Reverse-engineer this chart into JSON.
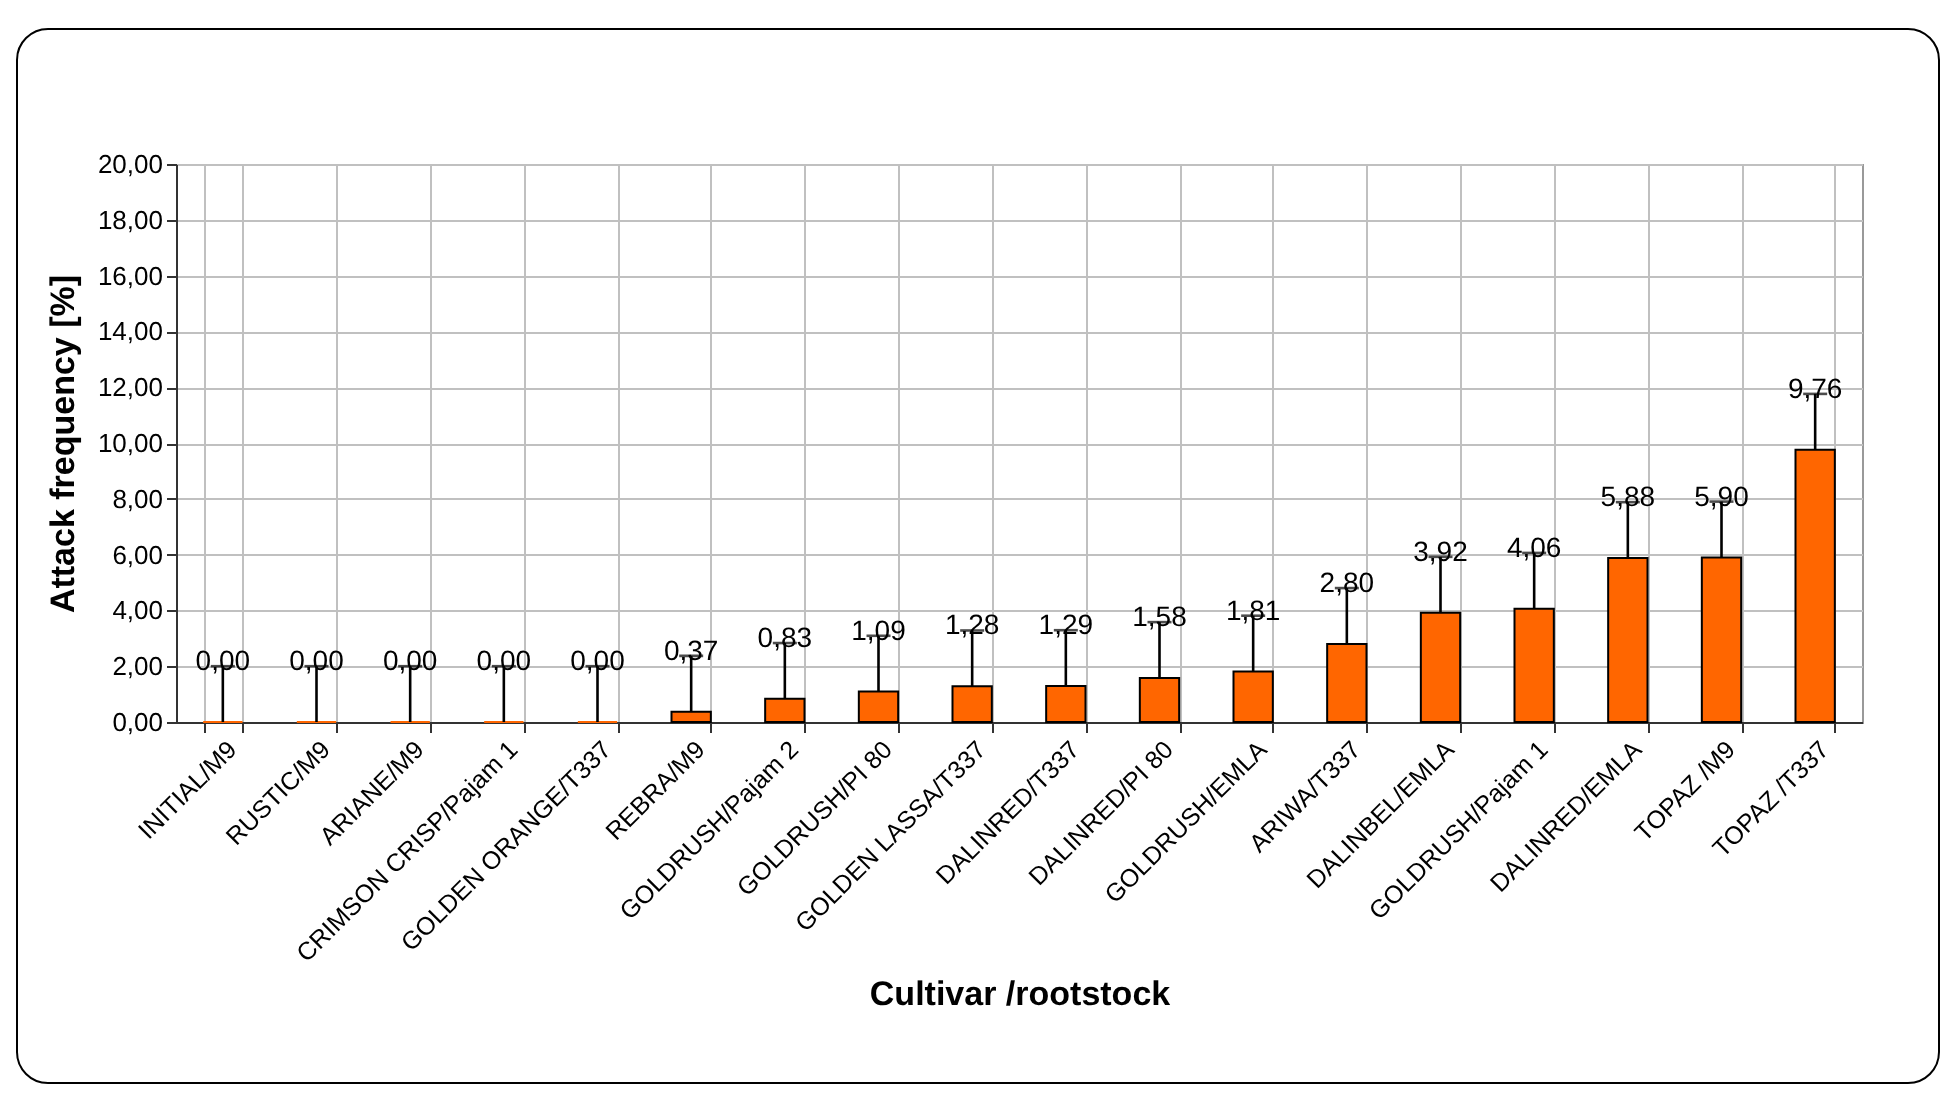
{
  "chart_data": {
    "type": "bar",
    "xlabel": "Cultivar /rootstock",
    "ylabel": "Attack frequency [%]",
    "categories": [
      "INITIAL/M9",
      "RUSTIC/M9",
      "ARIANE/M9",
      "CRIMSON CRISP/Pajam 1",
      "GOLDEN ORANGE/T337",
      "REBRA/M9",
      "GOLDRUSH/Pajam 2",
      "GOLDRUSH/PI 80",
      "GOLDEN LASSA/T337",
      "DALINRED/T337",
      "DALINRED/PI 80",
      "GOLDRUSH/EMLA",
      "ARIWA/T337",
      "DALINBEL/EMLA",
      "GOLDRUSH/Pajam 1",
      "DALINRED/EMLA",
      "TOPAZ /M9",
      "TOPAZ /T337"
    ],
    "values": [
      0,
      0,
      0,
      0,
      0,
      0.37,
      0.83,
      1.09,
      1.28,
      1.29,
      1.58,
      1.81,
      2.8,
      3.92,
      4.06,
      5.88,
      5.9,
      9.76
    ],
    "value_labels": [
      "0,00",
      "0,00",
      "0,00",
      "0,00",
      "0,00",
      "0,37",
      "0,83",
      "1,09",
      "1,28",
      "1,29",
      "1,58",
      "1,81",
      "2,80",
      "3,92",
      "4,06",
      "5,88",
      "5,90",
      "9,76"
    ],
    "errors": [
      [
        0,
        2
      ],
      [
        0,
        2
      ],
      [
        0,
        2
      ],
      [
        0,
        2
      ],
      [
        0,
        2
      ],
      [
        0.37,
        2.37
      ],
      [
        0.83,
        2.83
      ],
      [
        1.09,
        3.09
      ],
      [
        1.28,
        3.28
      ],
      [
        1.29,
        3.29
      ],
      [
        1.58,
        3.58
      ],
      [
        1.81,
        3.81
      ],
      [
        2.8,
        4.8
      ],
      [
        3.92,
        5.92
      ],
      [
        4.06,
        6.06
      ],
      [
        5.88,
        7.88
      ],
      [
        5.9,
        7.9
      ],
      [
        9.76,
        11.76
      ]
    ],
    "color": "#ff6600",
    "ylim": [
      0,
      20
    ],
    "yticks": [
      {
        "value": 0,
        "label": "0,00"
      },
      {
        "value": 2,
        "label": "2,00"
      },
      {
        "value": 4,
        "label": "4,00"
      },
      {
        "value": 6,
        "label": "6,00"
      },
      {
        "value": 8,
        "label": "8,00"
      },
      {
        "value": 10,
        "label": "10,00"
      },
      {
        "value": 12,
        "label": "12,00"
      },
      {
        "value": 14,
        "label": "14,00"
      },
      {
        "value": 16,
        "label": "16,00"
      },
      {
        "value": 18,
        "label": "18,00"
      },
      {
        "value": 20,
        "label": "20,00"
      }
    ],
    "grid": true
  }
}
